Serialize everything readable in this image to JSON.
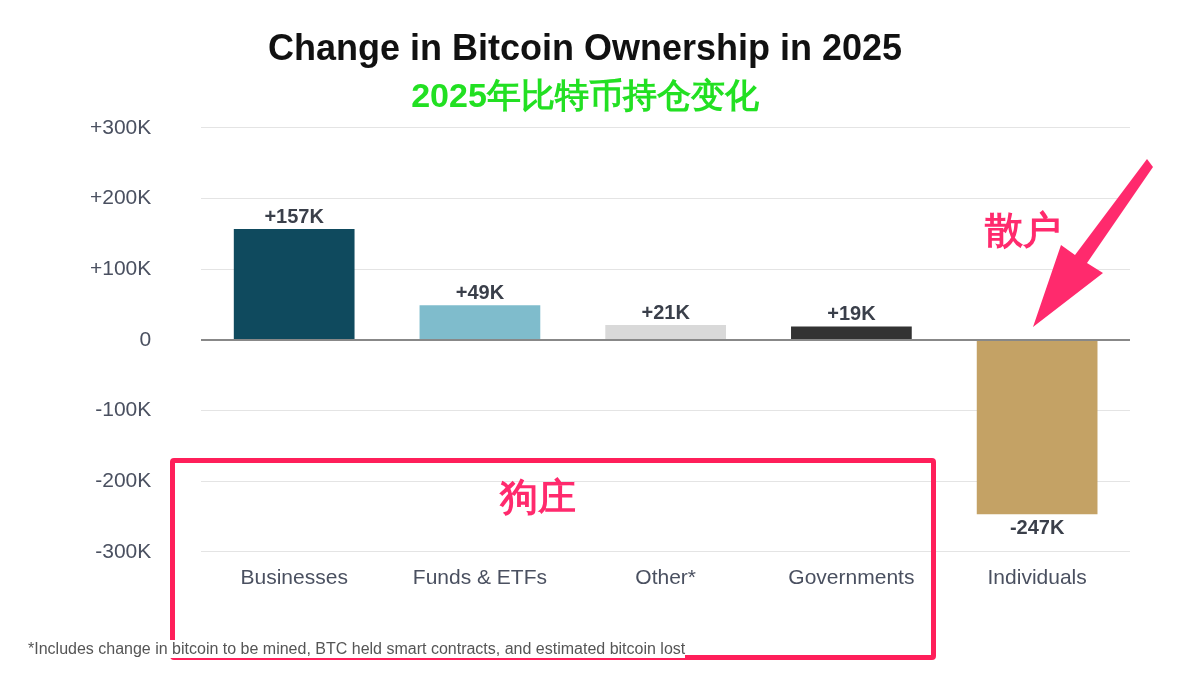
{
  "chart_data": {
    "type": "bar",
    "title": "Change in Bitcoin Ownership in 2025",
    "subtitle": "2025年比特币持仓变化",
    "categories": [
      "Businesses",
      "Funds & ETFs",
      "Other*",
      "Governments",
      "Individuals"
    ],
    "values": [
      157,
      49,
      21,
      19,
      -247
    ],
    "colors": [
      "#0f4a5e",
      "#7fbccc",
      "#d9d9d9",
      "#333333",
      "#c4a265"
    ],
    "value_labels": [
      "+157K",
      "+49K",
      "+21K",
      "+19K",
      "-247K"
    ],
    "ylim": [
      -300,
      300
    ],
    "yticks": [
      {
        "value": -300,
        "label": "-300K"
      },
      {
        "value": -200,
        "label": "-200K"
      },
      {
        "value": -100,
        "label": "-100K"
      },
      0,
      {
        "value": 100,
        "label": "+100K"
      },
      {
        "value": 200,
        "label": "+200K"
      },
      {
        "value": 300,
        "label": "+300K"
      }
    ],
    "grid": "y",
    "legend": false,
    "annotations": [
      "散户",
      "狗庄",
      "*Includes change in bitcoin to be mined, BTC held smart contracts, and estimated bitcoin lost"
    ]
  }
}
